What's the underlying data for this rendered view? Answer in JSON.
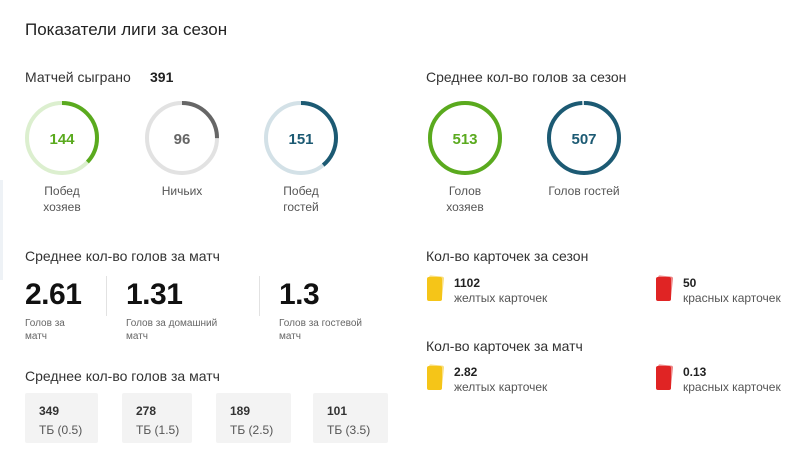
{
  "title": "Показатели лиги за сезон",
  "matches": {
    "label": "Матчей сыграно",
    "value": "391"
  },
  "result_rings": [
    {
      "value": "144",
      "caption": [
        "Побед",
        "хозяев"
      ],
      "fraction": 0.37,
      "color": "#5aaa1e",
      "track": "#dcefcf"
    },
    {
      "value": "96",
      "caption": [
        "Ничьих"
      ],
      "fraction": 0.25,
      "color": "#666666",
      "track": "#e2e2e2"
    },
    {
      "value": "151",
      "caption": [
        "Побед",
        "гостей"
      ],
      "fraction": 0.39,
      "color": "#1c5a73",
      "track": "#d3e1e7"
    }
  ],
  "season_goals": {
    "label": "Среднее кол-во голов за сезон",
    "rings": [
      {
        "value": "513",
        "caption": [
          "Голов",
          "хозяев"
        ],
        "fraction": 1.0,
        "color": "#5aaa1e",
        "track": "#dcefcf"
      },
      {
        "value": "507",
        "caption": [
          "Голов гостей"
        ],
        "fraction": 0.99,
        "color": "#1c5a73",
        "track": "#d3e1e7"
      }
    ]
  },
  "match_goals": {
    "label": "Среднее кол-во голов за матч",
    "stats": [
      {
        "value": "2.61",
        "caption": [
          "Голов за",
          "матч"
        ]
      },
      {
        "value": "1.31",
        "caption": [
          "Голов за домашний",
          "матч"
        ]
      },
      {
        "value": "1.3",
        "caption": [
          "Голов за гостевой",
          "матч"
        ]
      }
    ]
  },
  "totals": {
    "label": "Среднее кол-во голов за матч",
    "cards": [
      {
        "value": "349",
        "label": "ТБ (0.5)"
      },
      {
        "value": "278",
        "label": "ТБ (1.5)"
      },
      {
        "value": "189",
        "label": "ТБ (2.5)"
      },
      {
        "value": "101",
        "label": "ТБ (3.5)"
      }
    ]
  },
  "cards_season": {
    "label": "Кол-во карточек за сезон",
    "yellow": {
      "value": "1102",
      "label": "желтых карточек",
      "color": "#f5c518"
    },
    "red": {
      "value": "50",
      "label": "красных карточек",
      "color": "#e02424"
    }
  },
  "cards_match": {
    "label": "Кол-во карточек за матч",
    "yellow": {
      "value": "2.82",
      "label": "желтых карточек",
      "color": "#f5c518"
    },
    "red": {
      "value": "0.13",
      "label": "красных карточек",
      "color": "#e02424"
    }
  }
}
